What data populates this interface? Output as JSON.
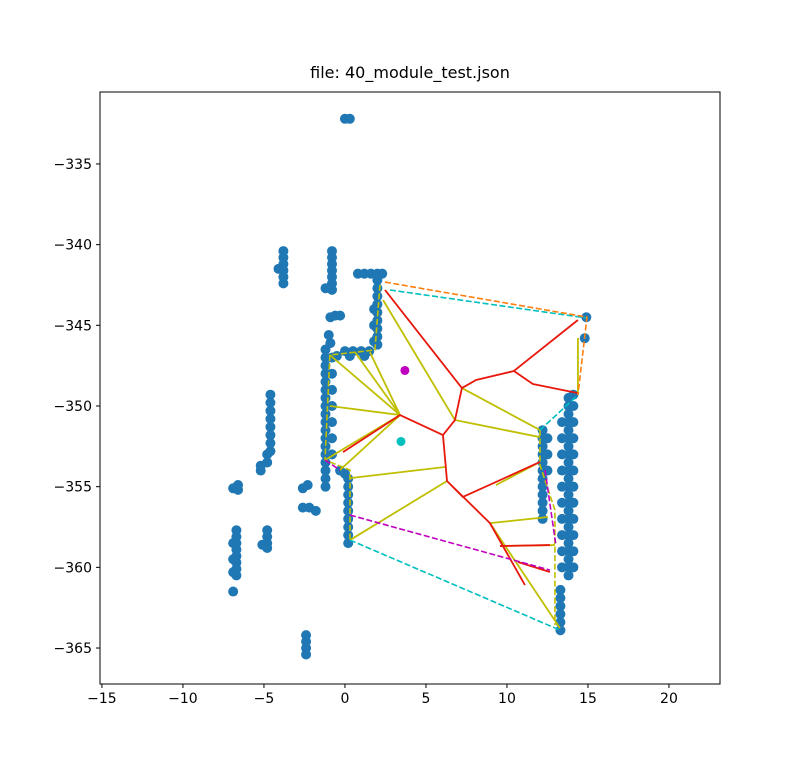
{
  "chart_data": {
    "type": "scatter",
    "title": "file: 40_module_test.json",
    "xlim": [
      -15.12,
      23.15
    ],
    "ylim": [
      -367.23,
      -330.54
    ],
    "xticks": [
      {
        "value": -15,
        "label": "−15"
      },
      {
        "value": -10,
        "label": "−10"
      },
      {
        "value": -5,
        "label": "−5"
      },
      0,
      5,
      10,
      15,
      20
    ],
    "yticks": [
      {
        "value": -335,
        "label": "−335"
      },
      {
        "value": -340,
        "label": "−340"
      },
      {
        "value": -345,
        "label": "−345"
      },
      {
        "value": -350,
        "label": "−350"
      },
      {
        "value": -355,
        "label": "−355"
      },
      {
        "value": -360,
        "label": "−360"
      },
      {
        "value": -365,
        "label": "−365"
      }
    ],
    "series": [
      {
        "color": "#1f77b4",
        "x": [
          0.0,
          0.3,
          -3.8,
          -3.8,
          -3.8,
          -3.8,
          -3.8,
          -3.8,
          -4.1,
          -0.8,
          -0.8,
          -0.8,
          -0.8,
          -0.8,
          -0.8,
          -0.8,
          -1.2,
          -0.9,
          -0.6,
          -0.3,
          -1.0,
          -0.9,
          -1.2,
          -1.2,
          -1.2,
          -1.2,
          -1.2,
          -1.2,
          -1.2,
          -1.2,
          -1.2,
          -1.2,
          -1.2,
          -1.2,
          -1.2,
          -1.2,
          -1.2,
          -1.2,
          -1.2,
          -1.2,
          -0.8,
          -0.8,
          -0.8,
          -0.8,
          -0.8,
          -0.8,
          -0.8,
          0.0,
          0.5,
          1.0,
          1.5,
          -0.5,
          0.3,
          1.2,
          -0.3,
          0.0,
          2.0,
          2.0,
          2.0,
          2.0,
          2.0,
          2.0,
          2.0,
          2.0,
          2.0,
          1.8,
          1.8,
          1.8,
          0.8,
          1.2,
          1.6,
          2.0,
          2.3,
          0.2,
          0.2,
          0.2,
          0.2,
          0.2,
          0.2,
          0.2,
          0.2,
          0.2,
          13.8,
          13.8,
          13.8,
          13.8,
          13.8,
          13.8,
          13.8,
          13.8,
          13.8,
          13.8,
          13.8,
          13.8,
          13.8,
          13.8,
          13.8,
          13.8,
          13.8,
          13.8,
          13.8,
          13.8,
          13.8,
          13.8,
          13.8,
          14.1,
          14.1,
          14.1,
          14.1,
          14.1,
          14.1,
          14.1,
          14.1,
          14.1,
          14.1,
          14.1,
          14.1,
          13.4,
          13.4,
          13.4,
          13.4,
          13.4,
          13.4,
          13.4,
          13.4,
          13.4,
          13.4,
          12.2,
          12.2,
          12.2,
          12.2,
          12.2,
          12.2,
          12.2,
          12.2,
          12.2,
          12.2,
          12.2,
          12.2,
          12.5,
          12.5,
          12.5,
          13.3,
          13.3,
          13.3,
          13.3,
          13.3,
          13.3,
          14.9,
          14.8,
          -4.6,
          -4.6,
          -4.6,
          -4.6,
          -4.6,
          -4.6,
          -4.6,
          -4.6,
          -4.8,
          -4.8,
          -5.2,
          -5.2,
          -6.6,
          -6.6,
          -6.9,
          -6.7,
          -6.7,
          -6.7,
          -6.7,
          -6.7,
          -6.7,
          -6.7,
          -6.7,
          -6.9,
          -6.9,
          -6.9,
          -6.9,
          -4.8,
          -4.8,
          -4.8,
          -4.8,
          -5.1,
          -2.6,
          -2.2,
          -1.8,
          -2.4,
          -2.4,
          -2.4,
          -2.4,
          -2.3,
          -2.6
        ],
        "y": [
          -332.2,
          -332.2,
          -340.4,
          -340.8,
          -341.2,
          -341.6,
          -342.0,
          -342.4,
          -341.5,
          -340.4,
          -340.8,
          -341.2,
          -341.6,
          -342.0,
          -342.4,
          -342.8,
          -342.7,
          -344.5,
          -344.4,
          -344.4,
          -345.6,
          -346.1,
          -346.5,
          -347.0,
          -347.5,
          -348.0,
          -348.5,
          -349.0,
          -349.5,
          -350.0,
          -350.5,
          -351.0,
          -351.5,
          -352.0,
          -352.5,
          -353.0,
          -353.5,
          -354.0,
          -354.5,
          -355.0,
          -347.0,
          -348.0,
          -349.0,
          -350.0,
          -351.0,
          -352.0,
          -353.0,
          -346.6,
          -346.6,
          -346.6,
          -346.6,
          -346.9,
          -346.9,
          -346.9,
          -354.0,
          -354.2,
          -342.2,
          -342.7,
          -343.2,
          -343.7,
          -344.2,
          -344.7,
          -345.2,
          -345.7,
          -346.2,
          -344.0,
          -345.0,
          -346.0,
          -341.8,
          -341.8,
          -341.8,
          -341.8,
          -341.8,
          -354.5,
          -355.0,
          -355.5,
          -356.0,
          -356.5,
          -357.0,
          -357.5,
          -358.0,
          -358.5,
          -349.5,
          -350.0,
          -350.5,
          -351.0,
          -351.5,
          -352.0,
          -352.5,
          -353.0,
          -353.5,
          -354.0,
          -354.5,
          -355.0,
          -355.5,
          -356.0,
          -356.5,
          -357.0,
          -357.5,
          -358.0,
          -358.5,
          -359.0,
          -359.5,
          -360.0,
          -360.5,
          -349.3,
          -350.0,
          -351.0,
          -352.0,
          -353.0,
          -354.0,
          -355.0,
          -356.0,
          -357.0,
          -358.0,
          -359.0,
          -360.0,
          -351.0,
          -352.0,
          -353.0,
          -354.0,
          -355.0,
          -356.0,
          -357.0,
          -358.0,
          -359.0,
          -360.0,
          -351.5,
          -352.0,
          -352.5,
          -353.0,
          -353.5,
          -354.0,
          -354.5,
          -355.0,
          -355.5,
          -356.0,
          -356.5,
          -357.0,
          -352.0,
          -353.0,
          -354.0,
          -361.4,
          -361.9,
          -362.4,
          -362.9,
          -363.4,
          -363.9,
          -344.5,
          -345.8,
          -349.3,
          -349.8,
          -350.3,
          -350.8,
          -351.3,
          -351.8,
          -352.3,
          -352.8,
          -353.0,
          -353.5,
          -353.7,
          -354.0,
          -354.9,
          -355.2,
          -355.1,
          -357.7,
          -358.1,
          -358.5,
          -358.9,
          -359.3,
          -359.7,
          -360.1,
          -360.5,
          -358.5,
          -359.5,
          -360.3,
          -361.5,
          -357.7,
          -358.1,
          -358.5,
          -358.8,
          -358.6,
          -356.3,
          -356.3,
          -356.5,
          -364.2,
          -364.6,
          -365.0,
          -365.4,
          -354.9,
          -355.1
        ]
      },
      {
        "color": "#bf00bf",
        "x": [
          3.7
        ],
        "y": [
          -347.8
        ]
      },
      {
        "color": "#00bfbf",
        "x": [
          3.46
        ],
        "y": [
          -352.2
        ]
      }
    ],
    "lines": [
      {
        "color": "#bfbf00",
        "dash": false,
        "x": [
          -0.93,
          3.4,
          null,
          0.62,
          3.4,
          null,
          1.54,
          3.4,
          null,
          -0.93,
          3.4,
          null,
          -1.23,
          3.4,
          null,
          -0.31,
          3.4,
          null,
          0.31,
          6.17,
          null,
          2.35,
          6.79,
          null,
          6.79,
          12.04,
          null,
          7.22,
          12.04,
          null,
          8.95,
          12.53,
          null,
          0.31,
          6.3,
          null,
          9.32,
          12.04,
          null,
          8.95,
          13.27,
          null,
          9.57,
          12.96,
          null,
          14.38,
          14.38
        ],
        "y": [
          -346.84,
          -350.56,
          null,
          -346.66,
          -350.56,
          null,
          -346.66,
          -350.56,
          null,
          -350.0,
          -350.56,
          null,
          -353.35,
          -350.56,
          null,
          -353.97,
          -350.56,
          null,
          -354.47,
          -353.78,
          null,
          -343.43,
          -350.87,
          null,
          -350.87,
          -351.93,
          null,
          -348.89,
          -351.49,
          null,
          -357.26,
          -356.88,
          null,
          -358.31,
          -354.65,
          null,
          -354.9,
          -353.47,
          null,
          -357.26,
          -363.77,
          null,
          -358.68,
          -358.62,
          null,
          -345.79,
          -349.32
        ]
      },
      {
        "color": "#e8170c",
        "dash": false,
        "x": [
          2.47,
          7.22,
          6.79,
          6.05,
          6.3,
          8.95,
          11.11,
          null,
          7.22,
          8.09,
          10.43,
          14.38,
          null,
          10.43,
          11.6,
          14.38,
          null,
          6.05,
          3.4,
          -0.12,
          null,
          6.3,
          7.28,
          12.04,
          null,
          9.57,
          12.65,
          null,
          10.68,
          12.65
        ],
        "y": [
          -342.81,
          -348.89,
          -350.87,
          -351.8,
          -354.65,
          -357.26,
          -361.1,
          null,
          -348.89,
          -348.39,
          -347.83,
          -344.67,
          null,
          -347.83,
          -348.64,
          -349.2,
          null,
          -351.8,
          -350.56,
          -352.86,
          null,
          -354.65,
          -355.64,
          -353.47,
          null,
          -358.68,
          -358.62,
          null,
          -359.67,
          -360.29
        ]
      },
      {
        "color": "#bfbf00",
        "dash": true,
        "x": [
          2.16,
          1.85,
          -0.93,
          -1.23,
          0.31,
          0.31,
          null,
          12.04,
          12.04,
          12.96,
          12.96
        ],
        "y": [
          -342.5,
          -346.53,
          -346.84,
          -353.35,
          -353.97,
          -358.31,
          null,
          -351.49,
          -353.66,
          -356.45,
          -363.58
        ]
      },
      {
        "color": "#00bfbf",
        "dash": true,
        "x": [
          2.78,
          14.94,
          null,
          12.04,
          14.38,
          null,
          0.31,
          13.27
        ],
        "y": [
          -342.81,
          -344.55,
          null,
          -351.49,
          -349.32,
          null,
          -358.31,
          -363.89
        ]
      },
      {
        "color": "#ff7f0e",
        "dash": true,
        "x": [
          2.47,
          14.94,
          14.38
        ],
        "y": [
          -342.32,
          -344.49,
          -349.32
        ]
      },
      {
        "color": "#bf00bf",
        "dash": true,
        "x": [
          0.31,
          12.65,
          null,
          12.35,
          13.02,
          null,
          -1.23,
          -0.31
        ],
        "y": [
          -356.76,
          -360.17,
          null,
          -353.97,
          -358.62,
          null,
          -353.35,
          -353.97
        ]
      }
    ]
  }
}
